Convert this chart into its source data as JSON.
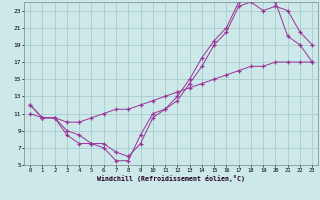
{
  "bg_color": "#cce8e8",
  "grid_color": "#aacccc",
  "line_color": "#993399",
  "xlabel": "Windchill (Refroidissement éolien,°C)",
  "xlim": [
    -0.5,
    23.5
  ],
  "ylim": [
    5,
    24
  ],
  "xticks": [
    0,
    1,
    2,
    3,
    4,
    5,
    6,
    7,
    8,
    9,
    10,
    11,
    12,
    13,
    14,
    15,
    16,
    17,
    18,
    19,
    20,
    21,
    22,
    23
  ],
  "yticks": [
    5,
    7,
    9,
    11,
    13,
    15,
    17,
    19,
    21,
    23
  ],
  "curve1_x": [
    0,
    1,
    2,
    3,
    4,
    5,
    6,
    7,
    8,
    9,
    10,
    11,
    12,
    13,
    14,
    15,
    16,
    17,
    18,
    19,
    20,
    21,
    22,
    23
  ],
  "curve1_y": [
    12.0,
    10.5,
    10.5,
    8.5,
    7.5,
    7.5,
    7.0,
    5.5,
    5.5,
    8.5,
    11.0,
    11.5,
    13.0,
    15.0,
    17.5,
    19.5,
    21.0,
    24.0,
    24.5,
    24.5,
    24.0,
    20.0,
    19.0,
    17.0
  ],
  "curve2_x": [
    0,
    1,
    2,
    3,
    4,
    5,
    6,
    7,
    8,
    9,
    10,
    11,
    12,
    13,
    14,
    15,
    16,
    17,
    18,
    19,
    20,
    21,
    22,
    23
  ],
  "curve2_y": [
    12.0,
    10.5,
    10.5,
    9.0,
    8.5,
    7.5,
    7.5,
    6.5,
    6.0,
    7.5,
    10.5,
    11.5,
    12.5,
    14.5,
    16.5,
    19.0,
    20.5,
    23.5,
    24.0,
    23.0,
    23.5,
    23.0,
    20.5,
    19.0
  ],
  "curve3_x": [
    0,
    1,
    2,
    3,
    4,
    5,
    6,
    7,
    8,
    9,
    10,
    11,
    12,
    13,
    14,
    15,
    16,
    17,
    18,
    19,
    20,
    21,
    22,
    23
  ],
  "curve3_y": [
    11.0,
    10.5,
    10.5,
    10.0,
    10.0,
    10.5,
    11.0,
    11.5,
    11.5,
    12.0,
    12.5,
    13.0,
    13.5,
    14.0,
    14.5,
    15.0,
    15.5,
    16.0,
    16.5,
    16.5,
    17.0,
    17.0,
    17.0,
    17.0
  ]
}
